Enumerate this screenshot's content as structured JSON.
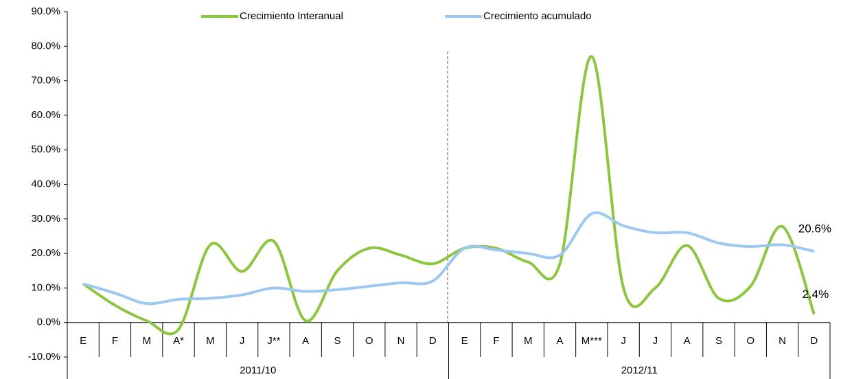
{
  "chart_data": {
    "type": "line",
    "categories": [
      "E",
      "F",
      "M",
      "A*",
      "M",
      "J",
      "J**",
      "A",
      "S",
      "O",
      "N",
      "D",
      "E",
      "F",
      "M",
      "A",
      "M***",
      "J",
      "J",
      "A",
      "S",
      "O",
      "N",
      "D"
    ],
    "groups": [
      "2011/10",
      "2012/11"
    ],
    "series": [
      {
        "name": "Crecimiento Interanual",
        "color": "#8cc63f",
        "values": [
          11.2,
          5,
          0.5,
          -2,
          22.5,
          14.8,
          23.5,
          0.5,
          15,
          21.5,
          19.5,
          17,
          21.5,
          21.5,
          17.5,
          17,
          77,
          10,
          10,
          22.3,
          7,
          10.5,
          27.8,
          2.4
        ],
        "value_labels": [
          null,
          null,
          null,
          null,
          null,
          null,
          null,
          null,
          null,
          null,
          null,
          null,
          null,
          null,
          null,
          null,
          null,
          null,
          null,
          null,
          null,
          null,
          null,
          "2.4%"
        ]
      },
      {
        "name": "Crecimiento acumulado",
        "color": "#9dc8f2",
        "values": [
          11.2,
          8.5,
          5.5,
          6.7,
          7,
          8,
          10,
          9,
          9.5,
          10.5,
          11.5,
          12,
          21.5,
          21,
          20,
          19.5,
          31.5,
          28,
          26,
          26,
          23,
          22,
          22.5,
          20.6
        ],
        "value_labels": [
          null,
          null,
          null,
          null,
          null,
          null,
          null,
          null,
          null,
          null,
          null,
          null,
          null,
          null,
          null,
          null,
          null,
          null,
          null,
          null,
          null,
          null,
          null,
          "20.6%"
        ]
      }
    ],
    "ylim": [
      -10,
      90
    ],
    "yticks": [
      {
        "value": -10,
        "label": "-10.0%"
      },
      {
        "value": 0,
        "label": "0.0%"
      },
      {
        "value": 10,
        "label": "10.0%"
      },
      {
        "value": 20,
        "label": "20.0%"
      },
      {
        "value": 30,
        "label": "30.0%"
      },
      {
        "value": 40,
        "label": "40.0%"
      },
      {
        "value": 50,
        "label": "50.0%"
      },
      {
        "value": 60,
        "label": "60.0%"
      },
      {
        "value": 70,
        "label": "70.0%"
      },
      {
        "value": 80,
        "label": "80.0%"
      },
      {
        "value": 90,
        "label": "90.0%"
      }
    ],
    "legend": "top",
    "smooth": true
  }
}
